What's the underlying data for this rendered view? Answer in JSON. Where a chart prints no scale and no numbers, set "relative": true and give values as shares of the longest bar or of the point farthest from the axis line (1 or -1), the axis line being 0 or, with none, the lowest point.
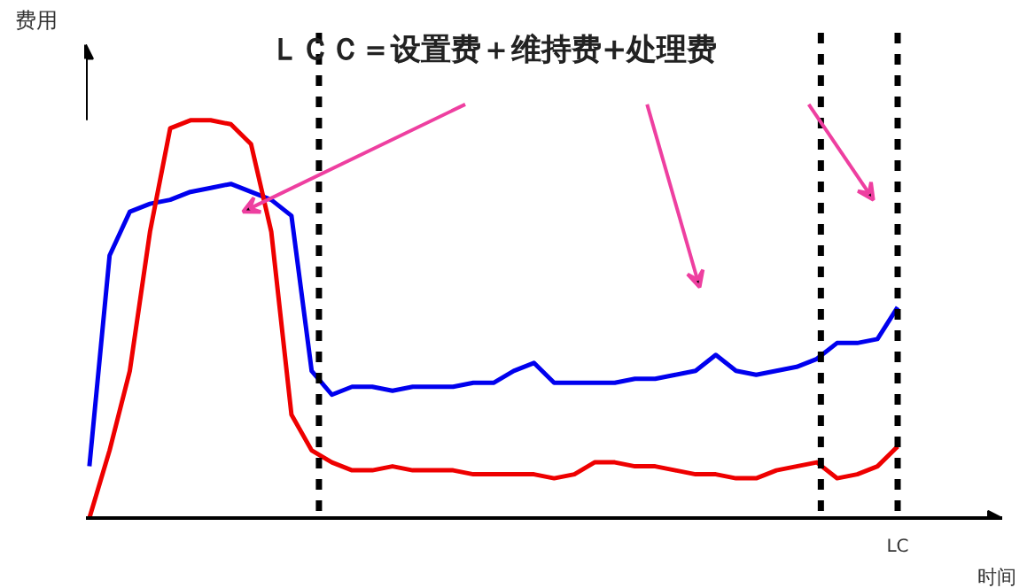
{
  "chart_data": {
    "type": "line",
    "relative": true,
    "title": "ＬＣＣ＝设置费＋维持费+处理费",
    "xlabel": "时间",
    "ylabel": "费用",
    "categories": [
      null,
      null,
      null,
      null,
      null,
      null,
      null,
      null,
      null,
      null,
      null,
      null,
      null,
      null,
      null,
      null,
      null,
      null,
      null,
      null,
      null,
      null,
      null,
      null,
      null,
      null,
      null,
      null,
      null,
      null,
      null,
      null,
      null,
      null,
      null,
      null,
      null,
      null,
      null,
      null,
      null
    ],
    "annotations": [
      "LC"
    ],
    "series": [
      {
        "color": "#0000ee",
        "values": [
          0.13,
          0.66,
          0.77,
          0.79,
          0.8,
          0.82,
          0.83,
          0.84,
          0.82,
          0.8,
          0.76,
          0.37,
          0.31,
          0.33,
          0.33,
          0.32,
          0.33,
          0.33,
          0.33,
          0.34,
          0.34,
          0.37,
          0.39,
          0.34,
          0.34,
          0.34,
          0.34,
          0.35,
          0.35,
          0.36,
          0.37,
          0.41,
          0.37,
          0.36,
          0.37,
          0.38,
          0.4,
          0.44,
          0.44,
          0.45,
          0.53
        ]
      },
      {
        "color": "#ee0000",
        "values": [
          0,
          0.17,
          0.37,
          0.72,
          0.98,
          1,
          1,
          0.99,
          0.94,
          0.72,
          0.26,
          0.17,
          0.14,
          0.12,
          0.12,
          0.13,
          0.12,
          0.12,
          0.12,
          0.11,
          0.11,
          0.11,
          0.11,
          0.1,
          0.11,
          0.14,
          0.14,
          0.13,
          0.13,
          0.12,
          0.11,
          0.11,
          0.1,
          0.1,
          0.12,
          0.13,
          0.14,
          0.1,
          0.11,
          0.13,
          0.18
        ]
      }
    ],
    "grid": false,
    "marker": "none",
    "line_style": "solid"
  }
}
